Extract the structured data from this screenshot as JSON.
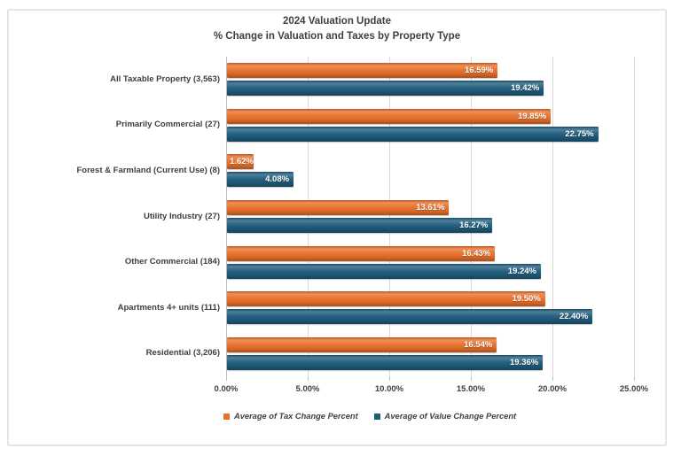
{
  "title": {
    "line1": "2024 Valuation Update",
    "line2": "% Change in Valuation and Taxes by Property Type"
  },
  "colors": {
    "frame_border": "#E4E4E4",
    "gridline": "#DBDBDB",
    "axis_line": "#BFBFBF",
    "text": "#3F3F3F",
    "value_label": "#FFFFFF"
  },
  "chart_data": {
    "type": "bar",
    "orientation": "horizontal",
    "title": "2024 Valuation Update",
    "subtitle": "% Change in Valuation and Taxes by Property Type",
    "categories": [
      "All Taxable Property (3,563)",
      "Primarily Commercial (27)",
      "Forest & Farmland (Current Use) (8)",
      "Utility Industry (27)",
      "Other Commercial (184)",
      "Apartments 4+ units (111)",
      "Residential (3,206)"
    ],
    "series": [
      {
        "name": "Average of Tax Change Percent",
        "color": "#E8702A",
        "values": [
          16.59,
          19.85,
          1.62,
          13.61,
          16.43,
          19.5,
          16.54
        ],
        "labels": [
          "16.59%",
          "19.85%",
          "1.62%",
          "13.61%",
          "16.43%",
          "19.50%",
          "16.54%"
        ]
      },
      {
        "name": "Average of Value Change Percent",
        "color": "#1F5C7D",
        "values": [
          19.42,
          22.75,
          4.08,
          16.27,
          19.24,
          22.4,
          19.36
        ],
        "labels": [
          "19.42%",
          "22.75%",
          "4.08%",
          "16.27%",
          "19.24%",
          "22.40%",
          "19.36%"
        ]
      }
    ],
    "x_ticks": [
      "0.00%",
      "5.00%",
      "10.00%",
      "15.00%",
      "20.00%",
      "25.00%"
    ],
    "xlim": [
      0,
      25
    ],
    "grid": true,
    "legend_position": "bottom"
  }
}
